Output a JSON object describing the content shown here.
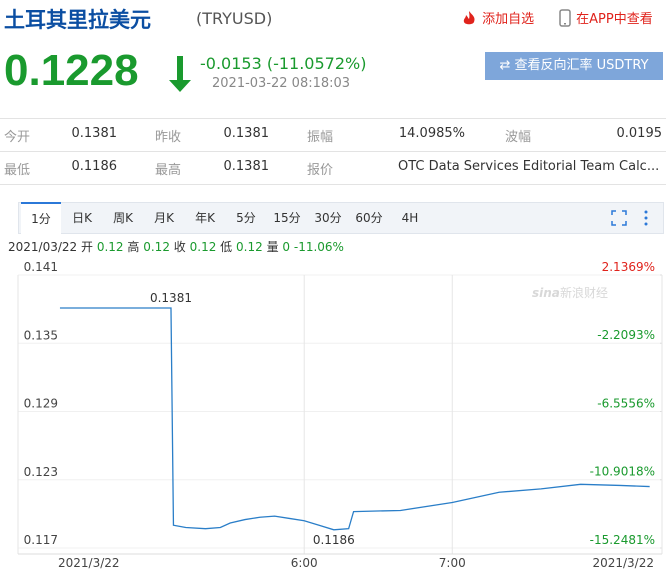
{
  "header": {
    "title": "土耳其里拉美元",
    "code": "(TRYUSD)",
    "add_watch": "添加自选",
    "view_app": "在APP中查看"
  },
  "quote": {
    "price": "0.1228",
    "change": "-0.0153 (-11.0572%)",
    "time": "2021-03-22 08:18:03",
    "reverse_button": "查看反向汇率 USDTRY"
  },
  "stats": {
    "rows": [
      [
        [
          "今开",
          "0.1381"
        ],
        [
          "昨收",
          "0.1381"
        ],
        [
          "振幅",
          "14.0985%"
        ],
        [
          "波幅",
          "0.0195"
        ]
      ],
      [
        [
          "最低",
          "0.1186"
        ],
        [
          "最高",
          "0.1381"
        ],
        [
          "报价",
          "OTC Data Services Editorial Team Calc..."
        ]
      ]
    ]
  },
  "tabs": [
    "1分",
    "日K",
    "周K",
    "月K",
    "年K",
    "5分",
    "15分",
    "30分",
    "60分",
    "4H"
  ],
  "info": {
    "date": "2021/03/22",
    "items": [
      [
        "开",
        "0.12"
      ],
      [
        "高",
        "0.12"
      ],
      [
        "收",
        "0.12"
      ],
      [
        "低",
        "0.12"
      ],
      [
        "量",
        "0"
      ]
    ],
    "change": "-11.06%"
  },
  "watermark": {
    "logo": "sina",
    "text": "新浪财经"
  },
  "chart_data": {
    "type": "line",
    "x": [
      261,
      306,
      307,
      312,
      320,
      326,
      330,
      336,
      342,
      348,
      354,
      360,
      366,
      372,
      378,
      380,
      399,
      420,
      439,
      456,
      472,
      488,
      500
    ],
    "series": [
      {
        "name": "TRYUSD",
        "color": "#2a7ec8",
        "values": [
          0.1381,
          0.1381,
          0.119,
          0.1188,
          0.1187,
          0.1188,
          0.1192,
          0.1195,
          0.1197,
          0.1198,
          0.1196,
          0.1194,
          0.119,
          0.1186,
          0.1187,
          0.1202,
          0.1203,
          0.121,
          0.1219,
          0.1222,
          0.1226,
          0.1225,
          0.1224
        ]
      }
    ],
    "xlim": [
      244,
      505
    ],
    "xticks": [
      {
        "value": 244,
        "label": "2021/3/22"
      },
      {
        "value": 360,
        "label": "6:00"
      },
      {
        "value": 420,
        "label": "7:00"
      },
      {
        "value": 505,
        "label": "2021/3/22"
      }
    ],
    "ylim": [
      0.117,
      0.141
    ],
    "yticks": [
      0.117,
      0.123,
      0.129,
      0.135,
      0.141
    ],
    "y2lim": [
      -15.2481,
      2.1369
    ],
    "y2ticks": [
      {
        "value": -15.2481,
        "label": "-15.2481%"
      },
      {
        "value": -10.9018,
        "label": "-10.9018%"
      },
      {
        "value": -6.5556,
        "label": "-6.5556%"
      },
      {
        "value": -2.2093,
        "label": "-2.2093%"
      },
      {
        "value": 2.1369,
        "label": "2.1369%"
      }
    ],
    "grid": true,
    "annotations": [
      {
        "text": "0.1381",
        "x": 306,
        "y": 0.1381
      },
      {
        "text": "0.1186",
        "x": 372,
        "y": 0.1186
      }
    ]
  }
}
